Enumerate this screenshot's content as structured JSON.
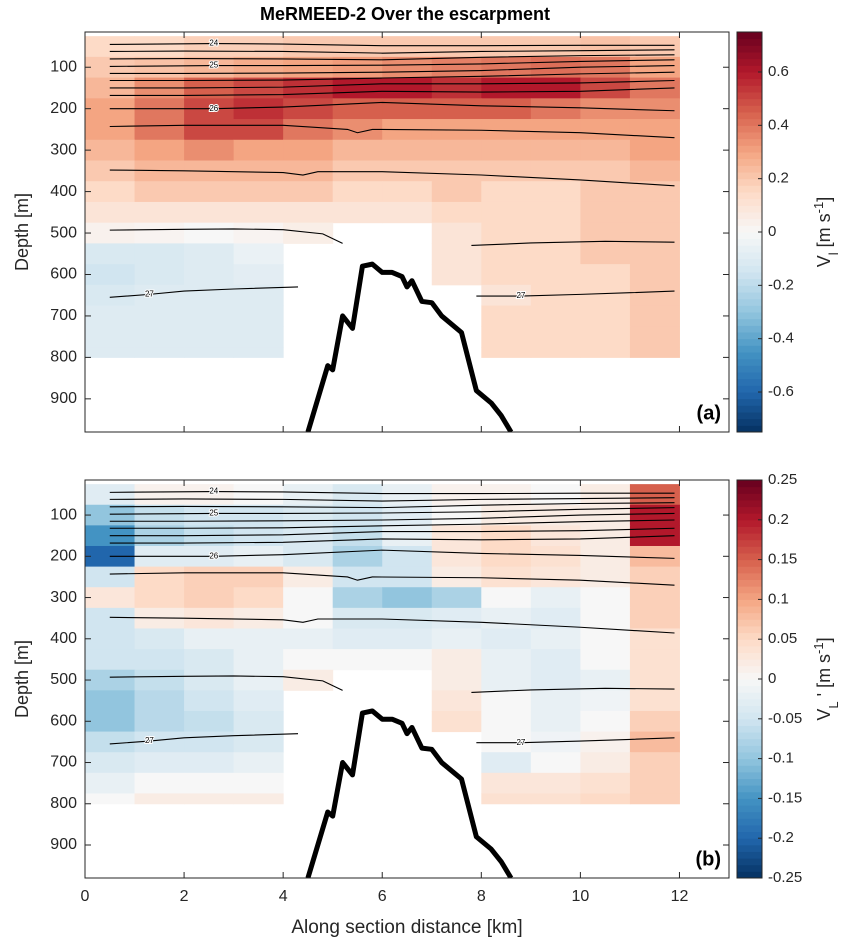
{
  "chart_data": [
    {
      "type": "heatmap",
      "title": "MeRMEED-2 Over the escarpment",
      "panel_label": "(a)",
      "y_label": "Depth [m]",
      "colorbar_label": {
        "main": "V",
        "sub": "l",
        "unit": " [m s",
        "sup": "-1",
        "end": "]"
      },
      "xlim": [
        0,
        13
      ],
      "xticks": [
        0,
        2,
        4,
        6,
        8,
        10,
        12
      ],
      "xtick_labels": false,
      "ylim": [
        15,
        980
      ],
      "yticks": [
        100,
        200,
        300,
        400,
        500,
        600,
        700,
        800,
        900
      ],
      "clim": [
        -0.75,
        0.75
      ],
      "cticks": [
        0.6,
        0.4,
        0.2,
        0,
        -0.2,
        -0.4,
        -0.6
      ],
      "colormap": [
        "#053061",
        "#2166ac",
        "#4393c3",
        "#92c5de",
        "#d1e5f0",
        "#f7f7f7",
        "#fddbc7",
        "#f4a582",
        "#d6604d",
        "#b2182b",
        "#67001f"
      ],
      "x_bins": [
        0,
        1,
        2,
        3,
        4,
        5,
        6,
        7,
        8,
        9,
        10,
        11,
        12
      ],
      "depth_bins": [
        25,
        75,
        125,
        175,
        225,
        275,
        325,
        375,
        425,
        475,
        525,
        575,
        625,
        675,
        725,
        775,
        800
      ],
      "values": [
        [
          0.15,
          0.15,
          0.18,
          0.18,
          0.2,
          0.2,
          0.2,
          0.2,
          0.2,
          0.2,
          0.22,
          0.2
        ],
        [
          0.2,
          0.22,
          0.25,
          0.28,
          0.3,
          0.32,
          0.35,
          0.38,
          0.4,
          0.42,
          0.4,
          0.3
        ],
        [
          0.25,
          0.35,
          0.45,
          0.5,
          0.55,
          0.6,
          0.6,
          0.55,
          0.6,
          0.6,
          0.5,
          0.4
        ],
        [
          0.3,
          0.4,
          0.5,
          0.55,
          0.5,
          0.45,
          0.45,
          0.45,
          0.45,
          0.4,
          0.35,
          0.35
        ],
        [
          0.3,
          0.4,
          0.5,
          0.5,
          0.4,
          0.35,
          0.3,
          0.3,
          0.3,
          0.3,
          0.3,
          0.3
        ],
        [
          0.25,
          0.3,
          0.35,
          0.3,
          0.3,
          0.25,
          0.25,
          0.25,
          0.25,
          0.25,
          0.25,
          0.3
        ],
        [
          0.2,
          0.25,
          0.25,
          0.25,
          0.25,
          0.2,
          0.2,
          0.2,
          0.2,
          0.2,
          0.2,
          0.25
        ],
        [
          0.15,
          0.2,
          0.2,
          0.2,
          0.2,
          0.15,
          0.15,
          0.2,
          0.15,
          0.15,
          0.2,
          0.2
        ],
        [
          0.1,
          0.1,
          0.1,
          0.1,
          0.1,
          0.1,
          0.1,
          0.15,
          0.15,
          0.15,
          0.2,
          0.2
        ],
        [
          0.03,
          0.02,
          0.0,
          0.02,
          0.05,
          null,
          null,
          0.1,
          0.15,
          0.15,
          0.2,
          0.2
        ],
        [
          -0.12,
          -0.12,
          -0.1,
          -0.05,
          null,
          null,
          null,
          0.1,
          0.15,
          0.15,
          0.2,
          0.2
        ],
        [
          -0.15,
          -0.12,
          -0.1,
          -0.08,
          null,
          null,
          null,
          0.1,
          0.15,
          0.15,
          0.15,
          0.2
        ],
        [
          -0.12,
          -0.1,
          -0.1,
          -0.1,
          null,
          null,
          null,
          null,
          0.1,
          0.15,
          0.15,
          0.2
        ],
        [
          -0.1,
          -0.1,
          -0.1,
          -0.1,
          null,
          null,
          null,
          null,
          0.15,
          0.15,
          0.15,
          0.2
        ],
        [
          -0.1,
          -0.1,
          -0.1,
          -0.1,
          null,
          null,
          null,
          null,
          0.15,
          0.15,
          0.15,
          0.2
        ],
        [
          -0.1,
          -0.1,
          -0.1,
          -0.1,
          null,
          null,
          null,
          null,
          0.15,
          0.15,
          0.15,
          0.2
        ]
      ]
    },
    {
      "type": "heatmap",
      "panel_label": "(b)",
      "y_label": "Depth [m]",
      "x_label": "Along section distance [km]",
      "colorbar_label": {
        "main": "V",
        "sub": "L",
        "unit": " ' [m s",
        "sup": "-1",
        "end": "]"
      },
      "xlim": [
        0,
        13
      ],
      "xticks": [
        0,
        2,
        4,
        6,
        8,
        10,
        12
      ],
      "xtick_labels": true,
      "ylim": [
        15,
        980
      ],
      "yticks": [
        100,
        200,
        300,
        400,
        500,
        600,
        700,
        800,
        900
      ],
      "clim": [
        -0.25,
        0.25
      ],
      "cticks": [
        0.25,
        0.2,
        0.15,
        0.1,
        0.05,
        0,
        -0.05,
        -0.1,
        -0.15,
        -0.2,
        -0.25
      ],
      "colormap": [
        "#053061",
        "#2166ac",
        "#4393c3",
        "#92c5de",
        "#d1e5f0",
        "#f7f7f7",
        "#fddbc7",
        "#f4a582",
        "#d6604d",
        "#b2182b",
        "#67001f"
      ],
      "x_bins": [
        0,
        1,
        2,
        3,
        4,
        5,
        6,
        7,
        8,
        9,
        10,
        11,
        12
      ],
      "depth_bins": [
        25,
        75,
        125,
        175,
        225,
        275,
        325,
        375,
        425,
        475,
        525,
        575,
        625,
        675,
        725,
        775,
        800
      ],
      "values": [
        [
          -0.03,
          0.01,
          0.01,
          0.0,
          -0.02,
          -0.04,
          -0.02,
          0.01,
          0.01,
          0.0,
          0.02,
          0.15
        ],
        [
          -0.1,
          -0.06,
          -0.05,
          -0.05,
          -0.04,
          -0.05,
          -0.03,
          0.0,
          0.02,
          0.02,
          0.02,
          0.2
        ],
        [
          -0.15,
          -0.08,
          -0.06,
          -0.05,
          -0.04,
          -0.06,
          -0.02,
          0.03,
          0.05,
          0.03,
          0.02,
          0.2
        ],
        [
          -0.2,
          -0.03,
          -0.03,
          -0.02,
          -0.04,
          -0.08,
          -0.05,
          0.03,
          0.05,
          0.04,
          0.02,
          0.08
        ],
        [
          -0.05,
          0.05,
          0.06,
          0.06,
          0.02,
          -0.05,
          -0.05,
          0.02,
          0.04,
          0.03,
          0.02,
          0.06
        ],
        [
          0.03,
          0.05,
          0.06,
          0.05,
          0.0,
          -0.08,
          -0.1,
          -0.08,
          0.0,
          -0.02,
          0.0,
          0.06
        ],
        [
          -0.05,
          0.02,
          0.03,
          0.02,
          0.0,
          -0.04,
          -0.04,
          -0.03,
          -0.02,
          -0.03,
          0.0,
          0.06
        ],
        [
          -0.05,
          -0.04,
          -0.02,
          -0.02,
          -0.02,
          -0.03,
          -0.03,
          -0.02,
          -0.03,
          -0.02,
          0.0,
          0.04
        ],
        [
          -0.05,
          -0.05,
          -0.04,
          -0.02,
          0.0,
          0.0,
          0.0,
          0.02,
          -0.02,
          -0.03,
          0.0,
          0.04
        ],
        [
          -0.08,
          -0.06,
          -0.04,
          -0.02,
          0.02,
          null,
          null,
          0.02,
          -0.02,
          -0.03,
          -0.02,
          0.04
        ],
        [
          -0.1,
          -0.07,
          -0.05,
          -0.03,
          null,
          null,
          null,
          0.03,
          0.0,
          -0.02,
          -0.01,
          0.04
        ],
        [
          -0.1,
          -0.07,
          -0.06,
          -0.04,
          null,
          null,
          null,
          0.04,
          0.0,
          -0.02,
          0.0,
          0.06
        ],
        [
          -0.06,
          -0.05,
          -0.05,
          -0.04,
          null,
          null,
          null,
          null,
          0.0,
          -0.01,
          0.01,
          0.08
        ],
        [
          -0.04,
          -0.03,
          -0.03,
          -0.02,
          null,
          null,
          null,
          null,
          -0.03,
          0.0,
          0.02,
          0.06
        ],
        [
          -0.02,
          0.0,
          0.0,
          0.0,
          null,
          null,
          null,
          null,
          0.03,
          0.03,
          0.04,
          0.06
        ],
        [
          0.0,
          0.02,
          0.02,
          0.02,
          null,
          null,
          null,
          null,
          0.04,
          0.04,
          0.05,
          0.06
        ]
      ]
    }
  ],
  "bathymetry": {
    "x": [
      4.5,
      4.6,
      4.9,
      5.0,
      5.2,
      5.4,
      5.6,
      5.8,
      6.0,
      6.2,
      6.4,
      6.5,
      6.6,
      6.8,
      7.0,
      7.2,
      7.6,
      7.9,
      8.2,
      8.4,
      8.6
    ],
    "depth": [
      980,
      940,
      820,
      830,
      700,
      730,
      580,
      575,
      595,
      595,
      605,
      630,
      615,
      665,
      668,
      700,
      740,
      880,
      910,
      940,
      980
    ]
  },
  "contours": [
    {
      "level": 24,
      "x": [
        0.5,
        2.6,
        4,
        6,
        8,
        10,
        11.9
      ],
      "depth": [
        45,
        43,
        44,
        48,
        48,
        47,
        47
      ]
    },
    {
      "x": [
        0.5,
        2,
        4,
        6,
        8,
        10,
        11.9
      ],
      "depth": [
        62,
        61,
        62,
        66,
        62,
        60,
        58
      ]
    },
    {
      "x": [
        0.5,
        2,
        4,
        6,
        8,
        10,
        11.9
      ],
      "depth": [
        80,
        79,
        80,
        82,
        76,
        72,
        70
      ]
    },
    {
      "level": 25,
      "x": [
        0.5,
        2.6,
        4,
        6,
        8,
        10,
        11.9
      ],
      "depth": [
        98,
        96,
        96,
        95,
        92,
        86,
        82
      ]
    },
    {
      "x": [
        0.5,
        2,
        4,
        6,
        8,
        10,
        11.9
      ],
      "depth": [
        115,
        115,
        114,
        112,
        108,
        100,
        96
      ]
    },
    {
      "x": [
        0.5,
        2,
        4,
        6,
        8,
        10,
        11.9
      ],
      "depth": [
        132,
        132,
        131,
        126,
        122,
        116,
        112
      ]
    },
    {
      "x": [
        0.5,
        2,
        4,
        6,
        8,
        10,
        11.9
      ],
      "depth": [
        150,
        150,
        148,
        140,
        140,
        138,
        132
      ]
    },
    {
      "x": [
        0.5,
        2,
        4,
        6,
        8,
        10,
        11.9
      ],
      "depth": [
        168,
        168,
        166,
        158,
        160,
        158,
        150
      ]
    },
    {
      "level": 26,
      "x": [
        0.5,
        2.6,
        4,
        6,
        8,
        10,
        11.9
      ],
      "depth": [
        200,
        200,
        196,
        185,
        193,
        198,
        205
      ]
    },
    {
      "x": [
        0.5,
        2,
        4,
        5.3,
        5.5,
        5.8,
        8,
        10,
        11.9
      ],
      "depth": [
        243,
        240,
        240,
        250,
        258,
        250,
        252,
        258,
        270
      ]
    },
    {
      "x": [
        0.5,
        2,
        4,
        4.4,
        4.7,
        6,
        8,
        10,
        11.9
      ],
      "depth": [
        348,
        350,
        354,
        360,
        352,
        352,
        360,
        372,
        386
      ]
    },
    {
      "x": [
        0.5,
        2,
        3,
        4,
        4.8,
        5.2
      ],
      "depth": [
        493,
        491,
        490,
        492,
        502,
        525
      ]
    },
    {
      "x": [
        7.8,
        9,
        10.5,
        11.9
      ],
      "depth": [
        530,
        524,
        520,
        522
      ]
    },
    {
      "level": 27,
      "x": [
        0.5,
        1.3,
        2,
        3,
        4.3
      ],
      "depth": [
        655,
        648,
        640,
        635,
        630
      ]
    },
    {
      "level": 27,
      "x": [
        7.9,
        8.8,
        10,
        11,
        11.9
      ],
      "depth": [
        652,
        652,
        648,
        644,
        640
      ]
    }
  ]
}
